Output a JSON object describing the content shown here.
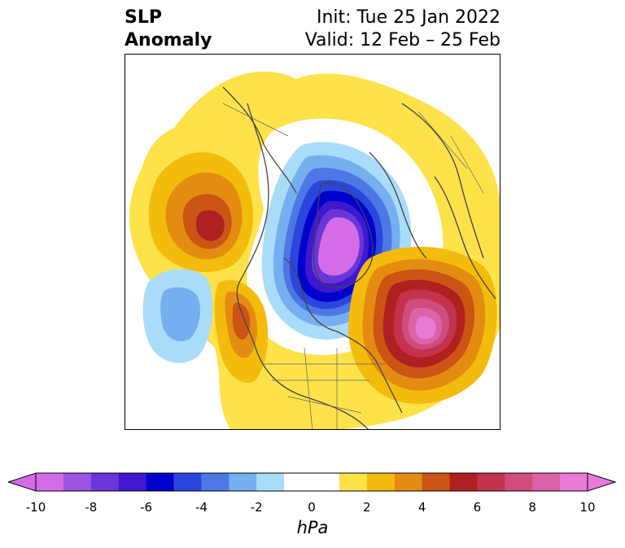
{
  "title": {
    "variable": "SLP",
    "subtitle": "Anomaly",
    "init": "Init: Tue 25 Jan 2022",
    "valid": "Valid: 12 Feb – 25 Feb"
  },
  "colorbar": {
    "unit": "hPa",
    "ticks": [
      "-10",
      "-8",
      "-6",
      "-4",
      "-2",
      "0",
      "2",
      "4",
      "6",
      "8",
      "10"
    ],
    "bins": [
      {
        "range": "-10 to -9",
        "color": "#d46ce8"
      },
      {
        "range": "-9 to -8",
        "color": "#9b55e0"
      },
      {
        "range": "-8 to -7",
        "color": "#6a36d8"
      },
      {
        "range": "-7 to -6",
        "color": "#3f18d0"
      },
      {
        "range": "-6 to -5",
        "color": "#0000cc"
      },
      {
        "range": "-5 to -4",
        "color": "#2b46dc"
      },
      {
        "range": "-4 to -3",
        "color": "#4e77e6"
      },
      {
        "range": "-3 to -2",
        "color": "#76aef0"
      },
      {
        "range": "-2 to -1",
        "color": "#a9dcf8"
      },
      {
        "range": "-1 to 0",
        "color": "#ffffff"
      },
      {
        "range": "0 to 1",
        "color": "#ffffff"
      },
      {
        "range": "1 to 2",
        "color": "#fde24a"
      },
      {
        "range": "2 to 3",
        "color": "#f3bb0c"
      },
      {
        "range": "3 to 4",
        "color": "#e48c12"
      },
      {
        "range": "4 to 5",
        "color": "#cc5414"
      },
      {
        "range": "5 to 6",
        "color": "#b02020"
      },
      {
        "range": "6 to 7",
        "color": "#c3334e"
      },
      {
        "range": "7 to 8",
        "color": "#d04c7c"
      },
      {
        "range": "8 to 9",
        "color": "#dc63a8"
      },
      {
        "range": "9 to 10",
        "color": "#e87ad8"
      }
    ],
    "extend_low_color": "#d46ce8",
    "extend_high_color": "#e87ad8"
  },
  "map": {
    "projection": "polar stereographic, North Hemisphere",
    "features": [
      "negative anomaly centered over Arctic/Greenland",
      "positive anomaly over North Atlantic",
      "positive anomaly over northeast Pacific",
      "negative anomaly over central Pacific"
    ]
  }
}
